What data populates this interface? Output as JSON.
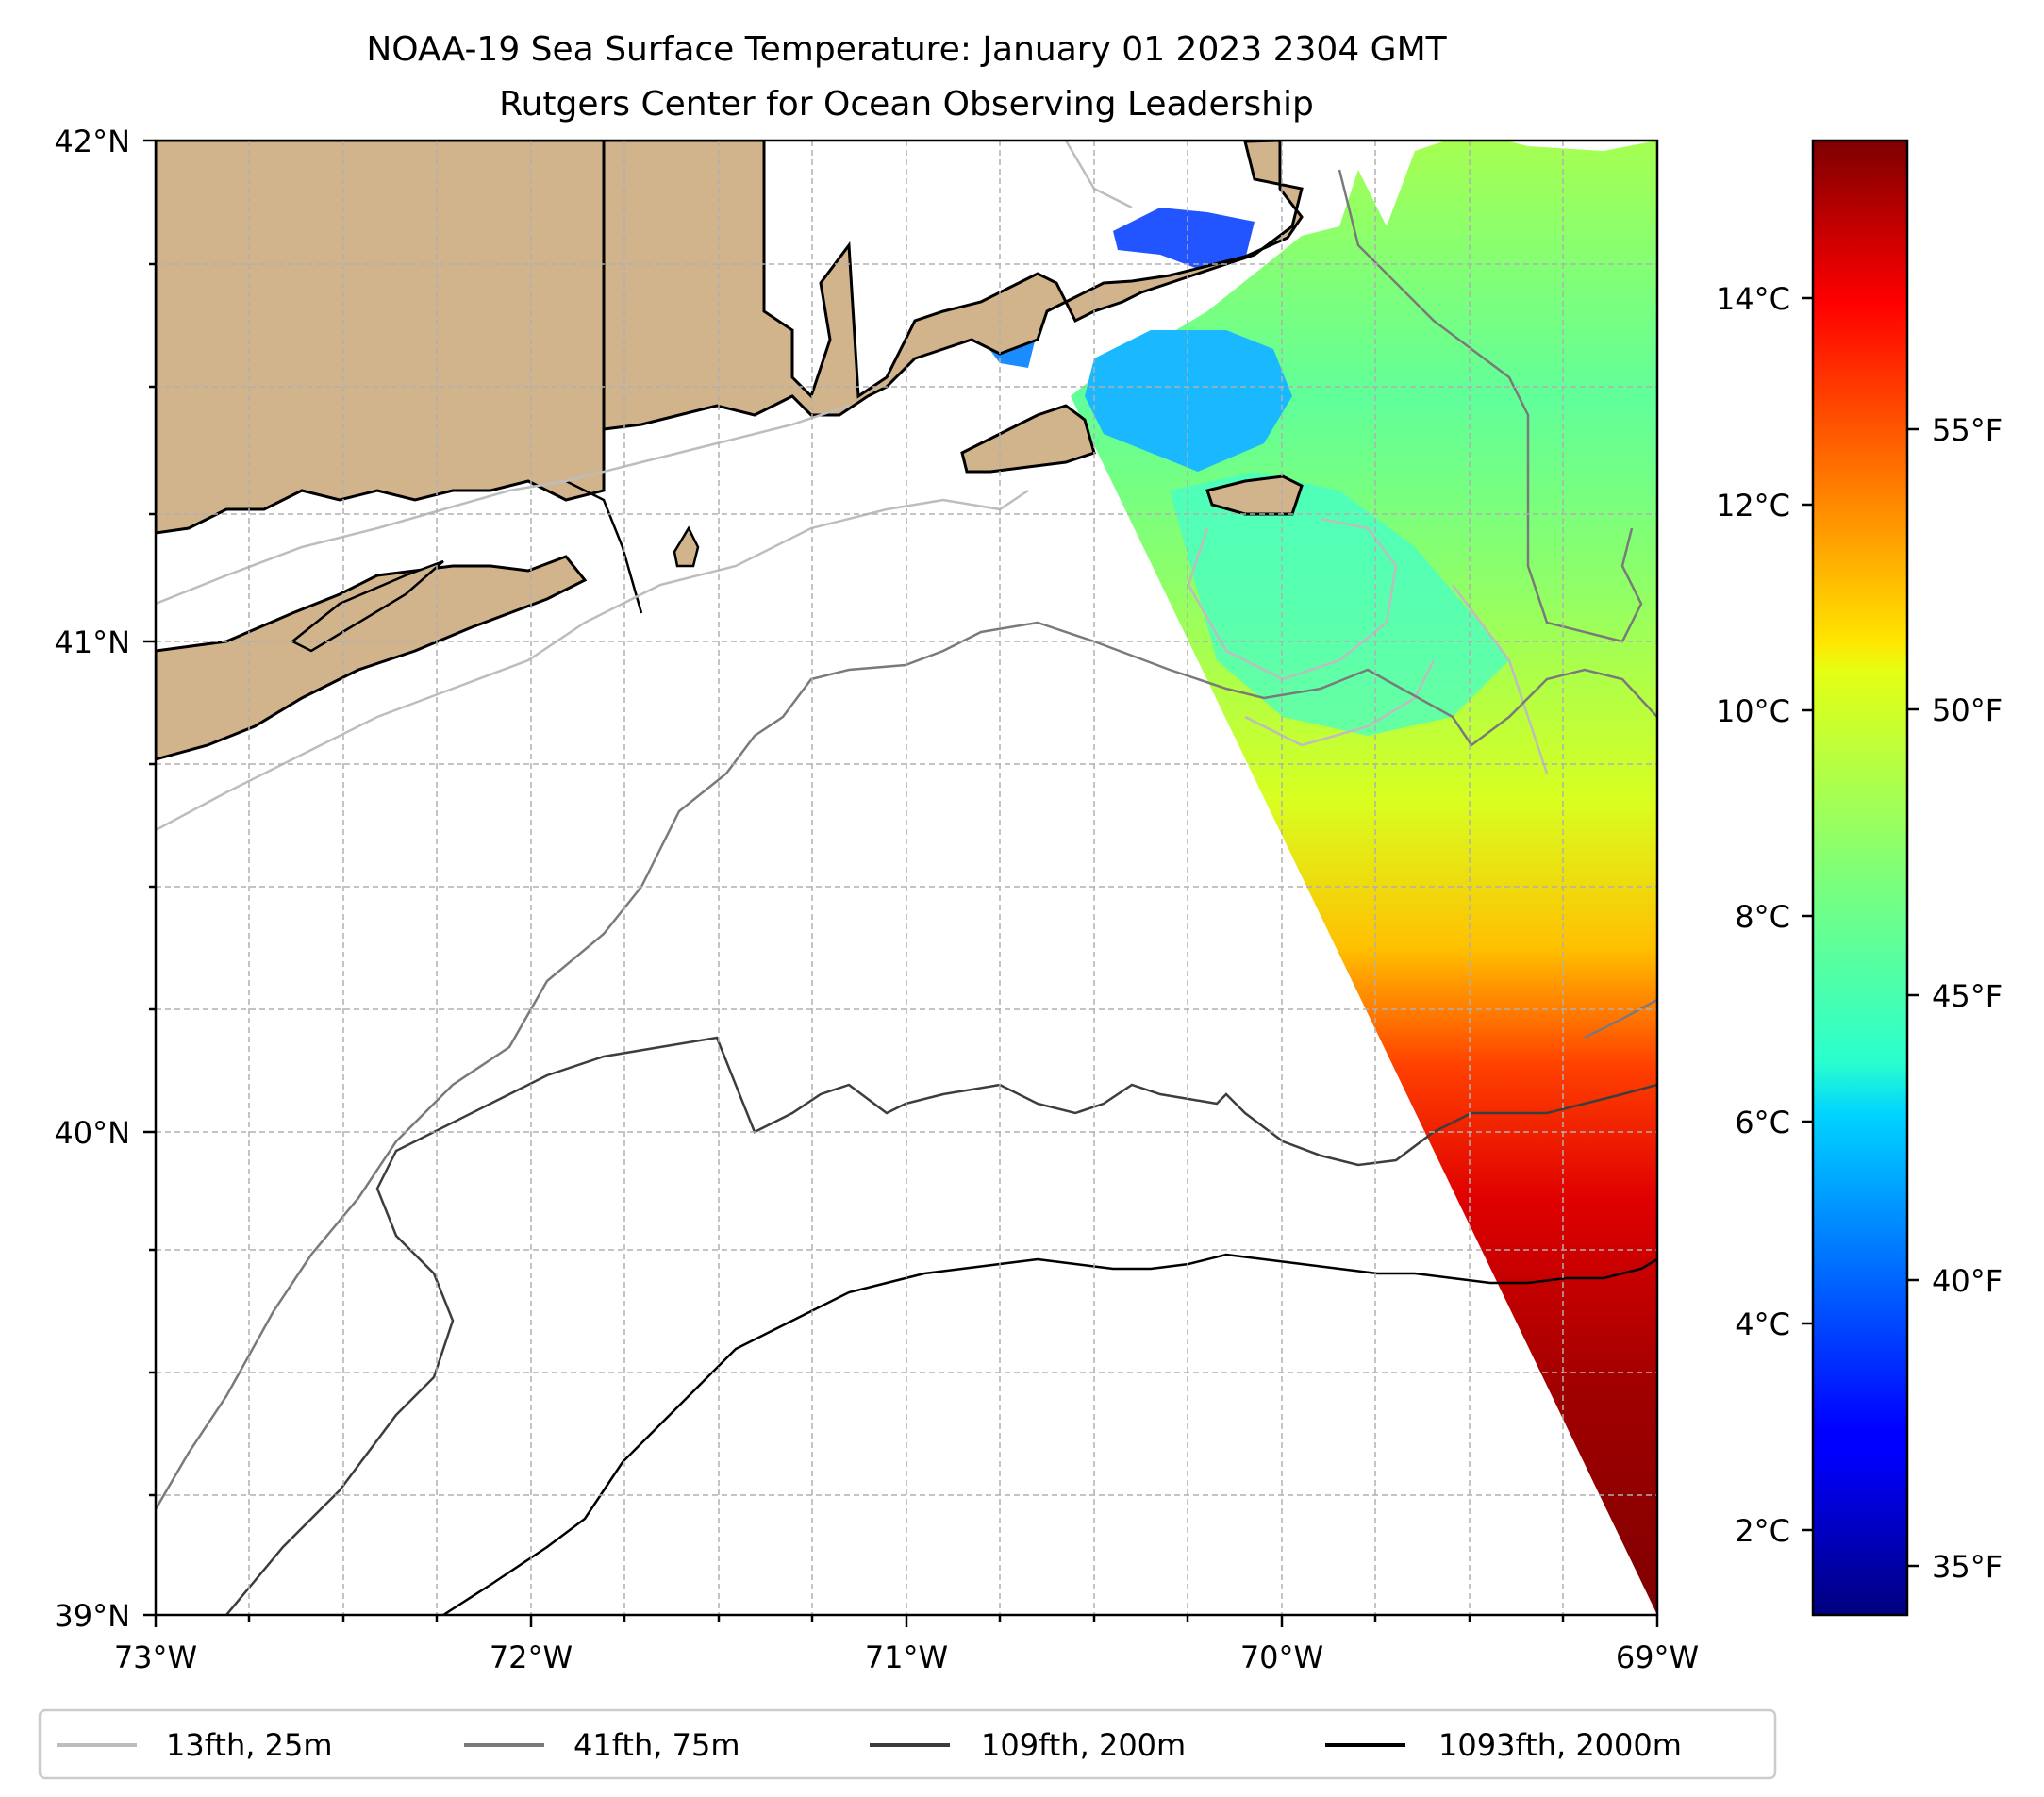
{
  "title": {
    "line1": "NOAA-19 Sea Surface Temperature: January 01 2023 2304 GMT",
    "line2": "Rutgers Center for Ocean Observing Leadership"
  },
  "map": {
    "lat_ticks": [
      "42°N",
      "41°N",
      "40°N",
      "39°N"
    ],
    "lon_ticks": [
      "73°W",
      "72°W",
      "71°W",
      "70°W",
      "69°W"
    ],
    "colors": {
      "land": "#d2b48c",
      "coast": "#000000",
      "grid": "#b0b0b0"
    }
  },
  "colorbar": {
    "celsius_ticks": [
      "14°C",
      "12°C",
      "10°C",
      "8°C",
      "6°C",
      "4°C",
      "2°C"
    ],
    "fahrenheit_ticks": [
      "55°F",
      "50°F",
      "45°F",
      "40°F",
      "35°F"
    ],
    "colormap": "jet"
  },
  "legend": {
    "items": [
      {
        "label": "13fth, 25m",
        "color": "#bdbdbd"
      },
      {
        "label": "41fth, 75m",
        "color": "#7a7a7a"
      },
      {
        "label": "109fth, 200m",
        "color": "#3d3d3d"
      },
      {
        "label": "1093fth, 2000m",
        "color": "#000000"
      }
    ]
  }
}
